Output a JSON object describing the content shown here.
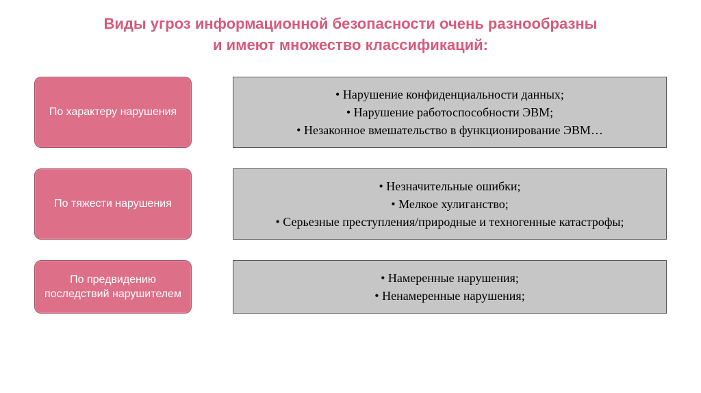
{
  "title": {
    "line1": "Виды угроз информационной безопасности очень разнообразны",
    "line2": "и имеют множество классификаций:",
    "color": "#d85a7a",
    "fontsize": 22
  },
  "category_box": {
    "bg_color": "#dd6f88",
    "text_color": "#ffffff",
    "fontsize": 16,
    "border_radius": 10
  },
  "detail_box": {
    "bg_color": "#c6c6c6",
    "text_color": "#000000",
    "fontsize": 18,
    "border_color": "#555555"
  },
  "rows": [
    {
      "category": "По характеру нарушения",
      "items": [
        "Нарушение конфиденциальности данных;",
        "Нарушение работоспособности ЭВМ;",
        "Незаконное вмешательство в функционирование ЭВМ…"
      ]
    },
    {
      "category": "По тяжести нарушения",
      "items": [
        "Незначительные ошибки;",
        "Мелкое хулиганство;",
        "Серьезные преступления/природные и техногенные катастрофы;"
      ]
    },
    {
      "category": "По предвидению последствий нарушителем",
      "items": [
        "Намеренные нарушения;",
        "Ненамеренные нарушения;"
      ]
    }
  ]
}
